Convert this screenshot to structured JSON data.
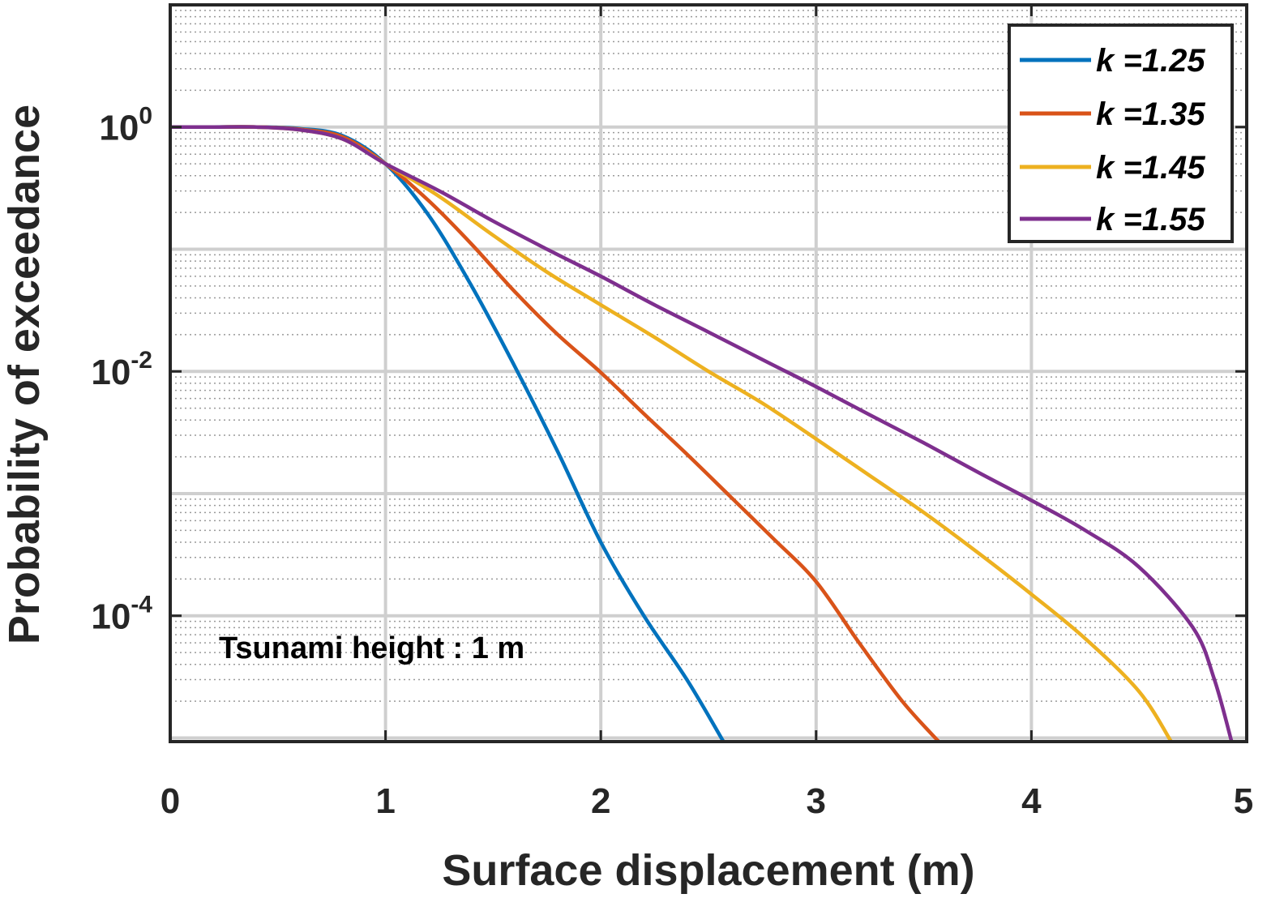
{
  "chart_data": {
    "type": "line",
    "title": "",
    "xlabel": "Surface displacement (m)",
    "ylabel": "Probability of exceedance",
    "xlim": [
      0,
      5
    ],
    "ylim_log10": [
      -5.03,
      1.0
    ],
    "yscale": "log",
    "grid": true,
    "x_ticks": [
      0,
      1,
      2,
      3,
      4,
      5
    ],
    "x_tick_labels": [
      "0",
      "1",
      "2",
      "3",
      "4",
      "5"
    ],
    "y_ticks": [
      {
        "base": "10",
        "exp": "0",
        "value": 1
      },
      {
        "base": "10",
        "exp": "-2",
        "value": 0.01
      },
      {
        "base": "10",
        "exp": "-4",
        "value": 0.0001
      }
    ],
    "legend_position": "top-right",
    "annotation": "Tsunami height : 1 m",
    "series": [
      {
        "name": "k =1.25",
        "color": "#0072BD",
        "x": [
          0,
          0.2,
          0.4,
          0.6,
          0.8,
          1.0,
          1.2,
          1.4,
          1.6,
          1.8,
          2.0,
          2.2,
          2.4,
          2.57
        ],
        "y": [
          1.0,
          1.0,
          1.0,
          0.97,
          0.85,
          0.5,
          0.19,
          0.05,
          0.011,
          0.0022,
          0.0004,
          0.0001,
          3e-05,
          9.3e-06
        ]
      },
      {
        "name": "k =1.35",
        "color": "#D95319",
        "x": [
          0,
          0.2,
          0.4,
          0.6,
          0.8,
          1.0,
          1.2,
          1.4,
          1.6,
          1.8,
          2.0,
          2.2,
          2.4,
          2.6,
          2.8,
          3.0,
          3.2,
          3.4,
          3.57
        ],
        "y": [
          1.0,
          1.0,
          1.0,
          0.96,
          0.83,
          0.5,
          0.25,
          0.11,
          0.045,
          0.02,
          0.0098,
          0.0045,
          0.0021,
          0.00095,
          0.00043,
          0.00019,
          6e-05,
          2e-05,
          9.3e-06
        ]
      },
      {
        "name": "k =1.45",
        "color": "#EDB120",
        "x": [
          0,
          0.2,
          0.4,
          0.6,
          0.8,
          1.0,
          1.25,
          1.5,
          1.75,
          2.0,
          2.25,
          2.5,
          2.75,
          3.0,
          3.25,
          3.5,
          3.75,
          4.0,
          4.25,
          4.5,
          4.65
        ],
        "y": [
          1.0,
          1.0,
          1.0,
          0.95,
          0.8,
          0.5,
          0.27,
          0.13,
          0.065,
          0.035,
          0.019,
          0.01,
          0.0055,
          0.0028,
          0.0014,
          0.0007,
          0.00033,
          0.00015,
          6.5e-05,
          2.4e-05,
          9.3e-06
        ]
      },
      {
        "name": "k =1.55",
        "color": "#7E2F8E",
        "x": [
          0,
          0.2,
          0.4,
          0.6,
          0.8,
          1.0,
          1.25,
          1.5,
          1.75,
          2.0,
          2.25,
          2.5,
          2.75,
          3.0,
          3.25,
          3.5,
          3.75,
          4.0,
          4.25,
          4.5,
          4.75,
          4.85,
          4.93
        ],
        "y": [
          1.0,
          1.0,
          1.0,
          0.95,
          0.8,
          0.5,
          0.3,
          0.17,
          0.1,
          0.06,
          0.035,
          0.021,
          0.0125,
          0.0075,
          0.0044,
          0.0026,
          0.0015,
          0.00088,
          0.0005,
          0.00025,
          8e-05,
          3e-05,
          9.3e-06
        ]
      }
    ]
  }
}
